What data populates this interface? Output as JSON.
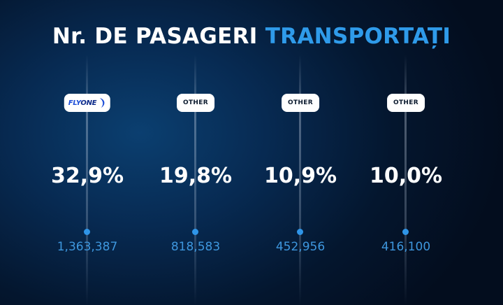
{
  "title": {
    "main": "Nr. DE PASAGERI",
    "accent": "TRANSPORTAȚI"
  },
  "colors": {
    "accent": "#2f9bea",
    "number": "#3e97de",
    "dot": "#2f95e8"
  },
  "chart_data": {
    "type": "bar",
    "title": "Nr. DE PASAGERI TRANSPORTAȚI",
    "categories": [
      "FLYONE",
      "OTHER",
      "OTHER",
      "OTHER"
    ],
    "series": [
      {
        "name": "share",
        "values": [
          32.9,
          19.8,
          10.9,
          10.0
        ]
      },
      {
        "name": "passengers",
        "values": [
          1363387,
          818583,
          452956,
          416100
        ]
      }
    ],
    "items": [
      {
        "label": "FLYONE",
        "logo": true,
        "percent_text": "32,9%",
        "passengers_text": "1,363,387"
      },
      {
        "label": "OTHER",
        "logo": false,
        "percent_text": "19,8%",
        "passengers_text": "818,583"
      },
      {
        "label": "OTHER",
        "logo": false,
        "percent_text": "10,9%",
        "passengers_text": "452,956"
      },
      {
        "label": "OTHER",
        "logo": false,
        "percent_text": "10,0%",
        "passengers_text": "416,100"
      }
    ]
  }
}
